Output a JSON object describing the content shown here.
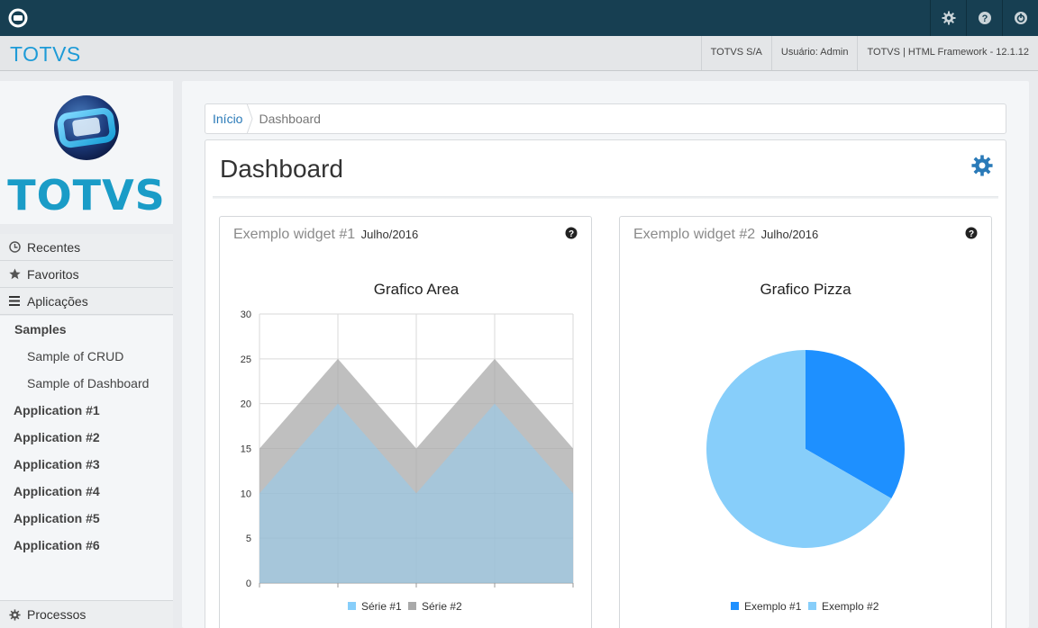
{
  "topbar": {
    "logo_icon": "totvs-logo-icon",
    "icons": [
      "gear-icon",
      "help-icon",
      "power-icon"
    ]
  },
  "appbar": {
    "brand": "TOTVS",
    "company": "TOTVS S/A",
    "user": "Usuário: Admin",
    "framework": "TOTVS | HTML Framework - 12.1.12"
  },
  "sidebar": {
    "logo_text": "TOTVS",
    "recentes": "Recentes",
    "favoritos": "Favoritos",
    "aplicacoes": "Aplicações",
    "samples": "Samples",
    "sample_crud": "Sample of CRUD",
    "sample_dashboard": "Sample of Dashboard",
    "apps": [
      "Application #1",
      "Application #2",
      "Application #3",
      "Application #4",
      "Application #5",
      "Application #6"
    ],
    "processos": "Processos"
  },
  "breadcrumb": {
    "home": "Início",
    "current": "Dashboard"
  },
  "page": {
    "title": "Dashboard"
  },
  "widgets": {
    "w1": {
      "title": "Exemplo widget #1",
      "subtitle": "Julho/2016"
    },
    "w2": {
      "title": "Exemplo widget #2",
      "subtitle": "Julho/2016"
    }
  },
  "colors": {
    "topbar": "#173f52",
    "brand": "#1e9bd7",
    "link": "#2a7ab8",
    "series1": "#87cefa",
    "series2": "#a9a9a9",
    "pie1": "#1e90ff",
    "pie2": "#87cefa"
  },
  "chart_data": [
    {
      "type": "area",
      "title": "Grafico Area",
      "x": [
        0,
        1,
        2,
        3,
        4
      ],
      "ylim": [
        0,
        30
      ],
      "yticks": [
        0,
        5,
        10,
        15,
        20,
        25,
        30
      ],
      "series": [
        {
          "name": "Série #1",
          "values": [
            10,
            20,
            10,
            20,
            10
          ]
        },
        {
          "name": "Série #2",
          "values": [
            15,
            25,
            15,
            25,
            15
          ]
        }
      ],
      "grid": true,
      "legend": "bottom"
    },
    {
      "type": "pie",
      "title": "Grafico Pizza",
      "slices": [
        {
          "name": "Exemplo #1",
          "value": 1
        },
        {
          "name": "Exemplo #2",
          "value": 2
        }
      ],
      "legend": "bottom"
    }
  ]
}
